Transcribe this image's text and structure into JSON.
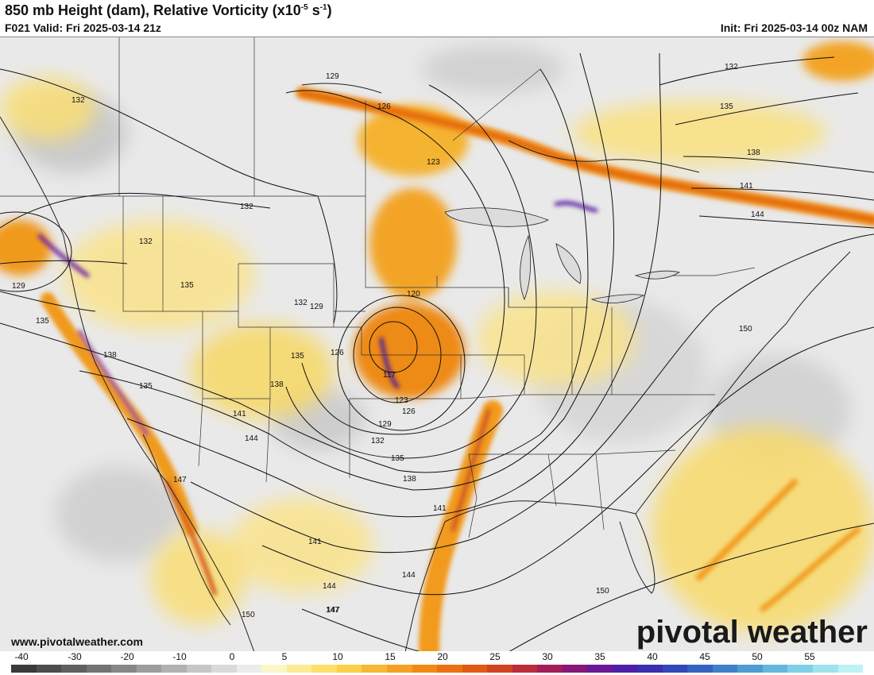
{
  "header": {
    "title_main": "850 mb Height (dam), Relative Vorticity (x10",
    "title_exp1": "-5",
    "title_mid": " s",
    "title_exp2": "-1",
    "title_end": ")",
    "valid": "F021 Valid: Fri 2025-03-14 21z",
    "init": "Init: Fri 2025-03-14 00z NAM"
  },
  "map": {
    "website": "www.pivotalweather.com",
    "brand": "pivotal weather",
    "contour_labels": [
      "132",
      "129",
      "126",
      "123",
      "120",
      "117",
      "123",
      "126",
      "129",
      "132",
      "135",
      "138",
      "141",
      "144",
      "147",
      "150",
      "132",
      "135",
      "138",
      "141",
      "144",
      "150",
      "132",
      "132",
      "135",
      "135",
      "135",
      "138",
      "135",
      "138",
      "141",
      "144",
      "147",
      "150",
      "141",
      "144",
      "147",
      "141",
      "144",
      "150",
      "129",
      "126",
      "135",
      "132",
      "135"
    ],
    "colors": {
      "contour": "#111111",
      "yellow": "#f7d84a",
      "orange": "#f19a1c",
      "deep_orange": "#e0600e",
      "purple": "#6a1fa0",
      "gray": "#9a9a9a"
    }
  },
  "colorbar": {
    "ticks": [
      "-40",
      "-30",
      "-20",
      "-10",
      "0",
      "5",
      "10",
      "15",
      "20",
      "25",
      "30",
      "35",
      "40",
      "45",
      "50",
      "55"
    ],
    "colors": [
      "#3a3a3a",
      "#4d4d4d",
      "#5f5f5f",
      "#737373",
      "#878787",
      "#9c9c9c",
      "#b1b1b1",
      "#c6c6c6",
      "#dadada",
      "#ececec",
      "#fbf6c6",
      "#fdeb94",
      "#fddf69",
      "#fbcf48",
      "#f9b833",
      "#f6a020",
      "#f28a12",
      "#ec7211",
      "#e25a14",
      "#d24320",
      "#bb2d3a",
      "#a21e5a",
      "#881779",
      "#6b1797",
      "#4f1ea8",
      "#3a2fb0",
      "#3148b8",
      "#3563c0",
      "#3e80c9",
      "#4e9cd2",
      "#63b7dc",
      "#7fcfe6",
      "#9ee3ee",
      "#bdf2f6"
    ]
  }
}
